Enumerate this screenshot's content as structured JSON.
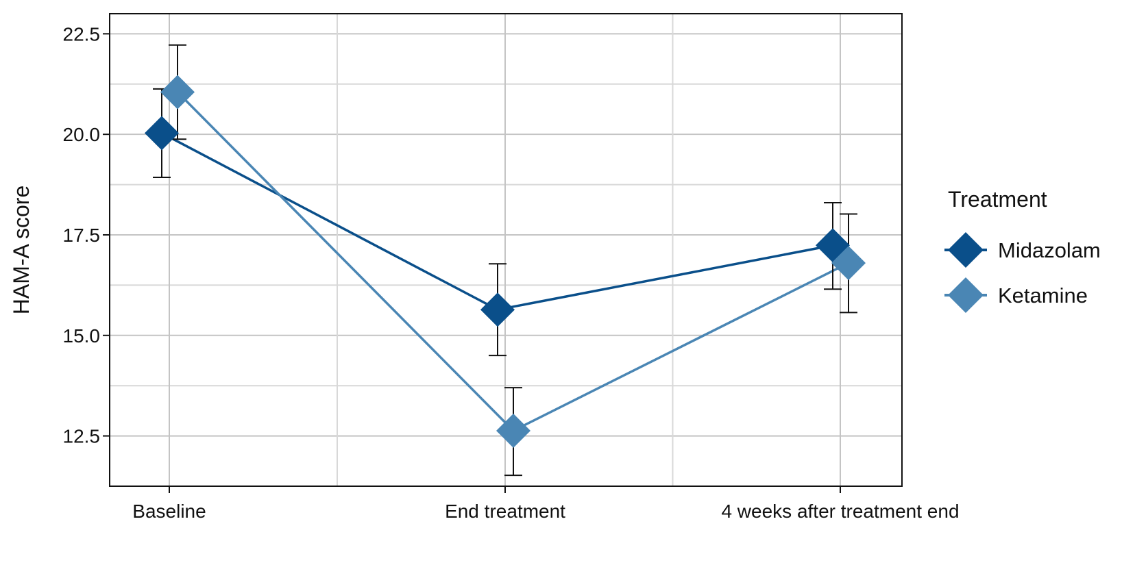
{
  "chart_data": {
    "type": "line",
    "title": "",
    "xlabel": "",
    "ylabel": "HAM-A score",
    "categories": [
      "Baseline",
      "End treatment",
      "4 weeks after treatment end"
    ],
    "ylim": [
      11.25,
      23.0
    ],
    "yticks": [
      12.5,
      15.0,
      17.5,
      20.0,
      22.5
    ],
    "ytick_labels": [
      "12.5",
      "15.0",
      "17.5",
      "20.0",
      "22.5"
    ],
    "grid": true,
    "error_bars": true,
    "legend": {
      "title": "Treatment",
      "position": "right"
    },
    "series": [
      {
        "name": "Midazolam",
        "color": "#0a4f8a",
        "marker": "diamond",
        "values": [
          20.03,
          15.64,
          17.24
        ],
        "err_low": [
          18.93,
          14.5,
          16.15
        ],
        "err_high": [
          21.13,
          16.78,
          18.3
        ]
      },
      {
        "name": "Ketamine",
        "color": "#4a86b4",
        "marker": "diamond",
        "values": [
          21.05,
          12.63,
          16.8
        ],
        "err_low": [
          19.88,
          11.52,
          15.57
        ],
        "err_high": [
          22.22,
          13.7,
          18.02
        ]
      }
    ]
  }
}
